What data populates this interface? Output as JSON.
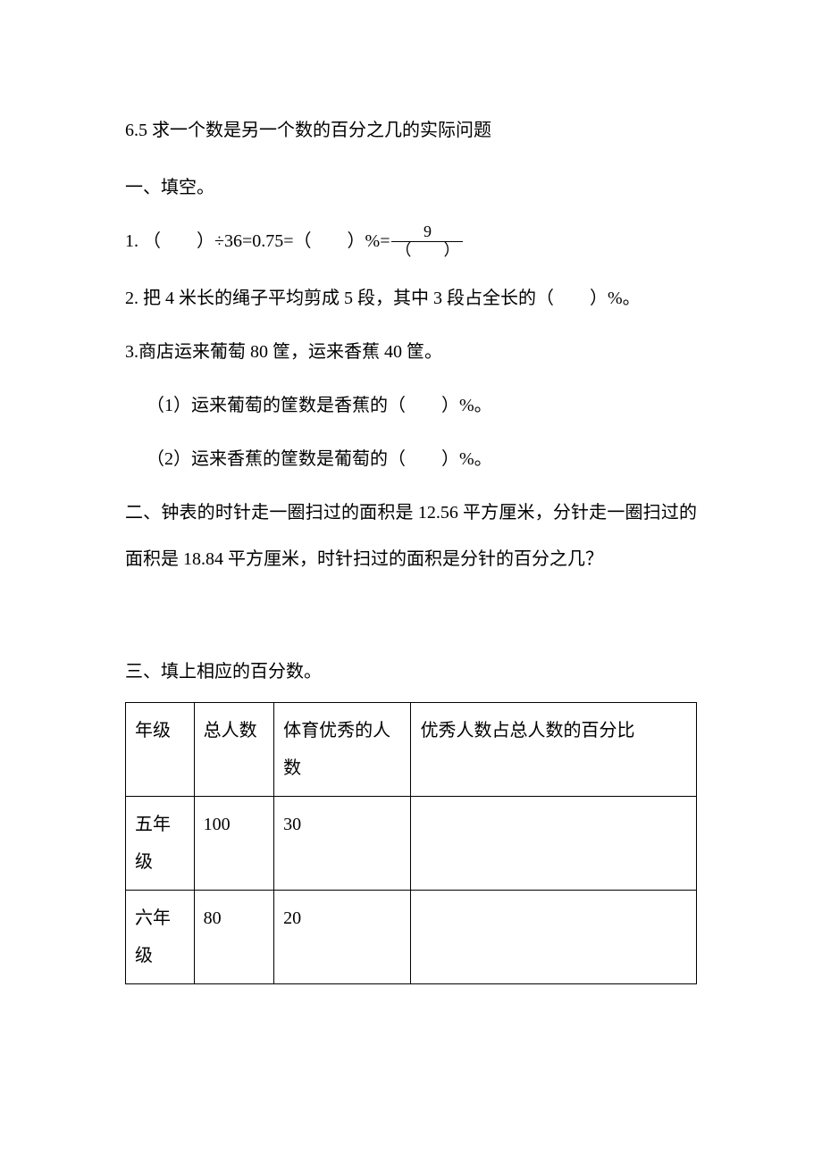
{
  "title": "6.5 求一个数是另一个数的百分之几的实际问题",
  "section1": {
    "heading": "一、填空。",
    "q1": {
      "pre": "1. （　　）÷36=0.75=（　　）%=",
      "fraction": {
        "numerator": "9",
        "denominator": "（　　）"
      }
    },
    "q2": "2. 把 4 米长的绳子平均剪成 5 段，其中 3 段占全长的（　　）%。",
    "q3": {
      "stem": "3.商店运来葡萄 80 筐，运来香蕉 40 筐。",
      "sub1": "（1）运来葡萄的筐数是香蕉的（　　）%。",
      "sub2": "（2）运来香蕉的筐数是葡萄的（　　）%。"
    }
  },
  "section2": {
    "text": "二、钟表的时针走一圈扫过的面积是 12.56 平方厘米，分针走一圈扫过的面积是 18.84 平方厘米，时针扫过的面积是分针的百分之几？"
  },
  "section3": {
    "heading": "三、填上相应的百分数。",
    "table": {
      "headers": [
        "年级",
        "总人数",
        "体育优秀的人数",
        "优秀人数占总人数的百分比"
      ],
      "rows": [
        [
          "五年级",
          "100",
          "30",
          ""
        ],
        [
          "六年级",
          "80",
          "20",
          ""
        ]
      ]
    }
  }
}
